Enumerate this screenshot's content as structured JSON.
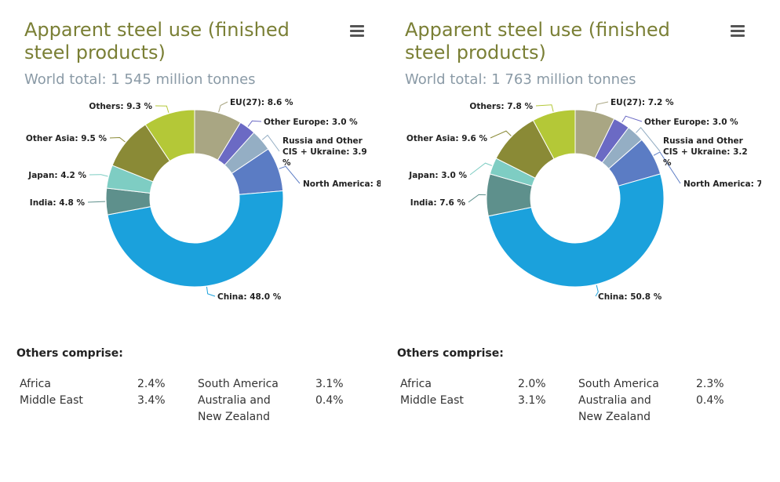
{
  "chart_data": [
    {
      "type": "pie",
      "title": "Apparent steel use (finished steel products)",
      "subtitle": "World total: 1 545 million tonnes",
      "categories": [
        "EU(27)",
        "Other Europe",
        "Russia and Other CIS + Ukraine",
        "North America",
        "China",
        "India",
        "Japan",
        "Other Asia",
        "Others"
      ],
      "values": [
        8.6,
        3.0,
        3.9,
        8.0,
        48.0,
        4.8,
        4.2,
        9.5,
        9.3
      ],
      "labels": [
        "EU(27): 8.6 %",
        "Other Europe: 3.0 %",
        "Russia and Other",
        "CIS + Ukraine: 3.9",
        "%",
        "North America: 8",
        "China: 48.0 %",
        "India: 4.8 %",
        "Japan: 4.2 %",
        "Other Asia: 9.5 %",
        "Others: 9.3 %"
      ],
      "colors": [
        "#a9a683",
        "#6b6ac4",
        "#94aec4",
        "#5b7cc4",
        "#1ba1dc",
        "#5e908c",
        "#7ecdc3",
        "#8a8a36",
        "#b4c837"
      ],
      "others_comprise": {
        "heading": "Others comprise:",
        "col1": [
          {
            "name": "Africa",
            "value": "2.4%"
          },
          {
            "name": "Middle East",
            "value": "3.4%"
          }
        ],
        "col2": [
          {
            "name": "South America",
            "value": "3.1%"
          },
          {
            "name": "Australia and",
            "name2": "New Zealand",
            "value": "0.4%"
          }
        ]
      }
    },
    {
      "type": "pie",
      "title": "Apparent steel use (finished steel products)",
      "subtitle": "World total: 1 763 million tonnes",
      "categories": [
        "EU(27)",
        "Other Europe",
        "Russia and Other CIS + Ukraine",
        "North America",
        "China",
        "India",
        "Japan",
        "Other Asia",
        "Others"
      ],
      "values": [
        7.2,
        3.0,
        3.2,
        7.0,
        50.8,
        7.6,
        3.0,
        9.6,
        7.8
      ],
      "labels": [
        "EU(27): 7.2 %",
        "Other Europe: 3.0 %",
        "Russia and Other",
        "CIS + Ukraine: 3.2",
        "%",
        "North America: 7",
        "China: 50.8 %",
        "India: 7.6 %",
        "Japan: 3.0 %",
        "Other Asia: 9.6 %",
        "Others: 7.8 %"
      ],
      "colors": [
        "#a9a683",
        "#6b6ac4",
        "#94aec4",
        "#5b7cc4",
        "#1ba1dc",
        "#5e908c",
        "#7ecdc3",
        "#8a8a36",
        "#b4c837"
      ],
      "others_comprise": {
        "heading": "Others comprise:",
        "col1": [
          {
            "name": "Africa",
            "value": "2.0%"
          },
          {
            "name": "Middle East",
            "value": "3.1%"
          }
        ],
        "col2": [
          {
            "name": "South America",
            "value": "2.3%"
          },
          {
            "name": "Australia and",
            "name2": "New Zealand",
            "value": "0.4%"
          }
        ]
      }
    }
  ]
}
